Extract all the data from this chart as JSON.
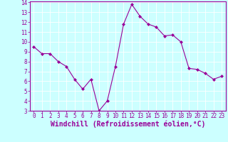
{
  "x": [
    0,
    1,
    2,
    3,
    4,
    5,
    6,
    7,
    8,
    9,
    10,
    11,
    12,
    13,
    14,
    15,
    16,
    17,
    18,
    19,
    20,
    21,
    22,
    23
  ],
  "y": [
    9.5,
    8.8,
    8.8,
    8.0,
    7.5,
    6.2,
    5.2,
    6.2,
    3.0,
    4.0,
    7.5,
    11.8,
    13.8,
    12.6,
    11.8,
    11.5,
    10.6,
    10.7,
    10.0,
    7.3,
    7.2,
    6.8,
    6.2,
    6.5
  ],
  "line_color": "#990099",
  "marker": "D",
  "marker_size": 2.0,
  "background_color": "#ccffff",
  "grid_color": "#ffffff",
  "xlabel": "Windchill (Refroidissement éolien,°C)",
  "ylim": [
    3,
    14
  ],
  "xlim": [
    -0.5,
    23.5
  ],
  "yticks": [
    3,
    4,
    5,
    6,
    7,
    8,
    9,
    10,
    11,
    12,
    13,
    14
  ],
  "xticks": [
    0,
    1,
    2,
    3,
    4,
    5,
    6,
    7,
    8,
    9,
    10,
    11,
    12,
    13,
    14,
    15,
    16,
    17,
    18,
    19,
    20,
    21,
    22,
    23
  ],
  "tick_color": "#990099",
  "label_color": "#990099",
  "tick_fontsize": 5.5,
  "xlabel_fontsize": 7.0
}
